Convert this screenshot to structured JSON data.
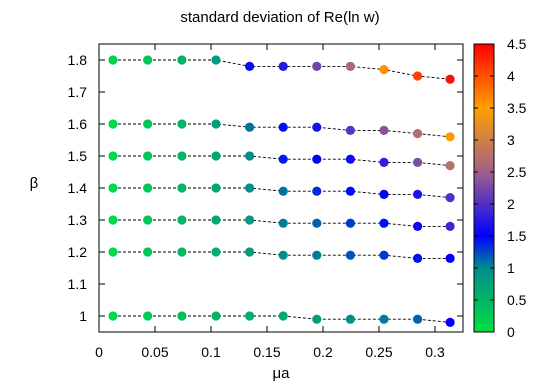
{
  "chart_data": {
    "type": "scatter",
    "title": "standard deviation of Re(ln w)",
    "xlabel": "μa",
    "ylabel": "β",
    "xlim": [
      0,
      0.325
    ],
    "ylim": [
      0.95,
      1.85
    ],
    "grid": false,
    "x_ticks": [
      0,
      0.05,
      0.1,
      0.15,
      0.2,
      0.25,
      0.3
    ],
    "x_tick_labels": [
      "0",
      "0.05",
      "0.1",
      "0.15",
      "0.2",
      "0.25",
      "0.3"
    ],
    "y_ticks": [
      1,
      1.1,
      1.2,
      1.3,
      1.4,
      1.5,
      1.6,
      1.7,
      1.8
    ],
    "y_tick_labels": [
      "1",
      "1.1",
      "1.2",
      "1.3",
      "1.4",
      "1.5",
      "1.6",
      "1.7",
      "1.8"
    ],
    "colorbar": {
      "range": [
        0,
        4.5
      ],
      "ticks": [
        0,
        0.5,
        1,
        1.5,
        2,
        2.5,
        3,
        3.5,
        4,
        4.5
      ],
      "tick_labels": [
        "0",
        "0.5",
        "1",
        "1.5",
        "2",
        "2.5",
        "3",
        "3.5",
        "4",
        "4.5"
      ],
      "stops": [
        {
          "v": 0.0,
          "color": "#00e040"
        },
        {
          "v": 1.0,
          "color": "#008c8c"
        },
        {
          "v": 1.5,
          "color": "#0000ff"
        },
        {
          "v": 2.5,
          "color": "#a0608c"
        },
        {
          "v": 3.5,
          "color": "#ffa000"
        },
        {
          "v": 4.5,
          "color": "#ff0000"
        }
      ]
    },
    "x": [
      0.0125,
      0.0435,
      0.074,
      0.1045,
      0.1345,
      0.1645,
      0.1945,
      0.2245,
      0.2545,
      0.2845,
      0.3135
    ],
    "series": [
      {
        "beta": [
          1.8,
          1.8,
          1.8,
          1.8,
          1.78,
          1.78,
          1.78,
          1.78,
          1.77,
          1.75,
          1.74
        ],
        "color_values": [
          0.15,
          0.35,
          0.55,
          0.8,
          1.45,
          1.75,
          2.2,
          2.6,
          3.6,
          4.1,
          4.4
        ]
      },
      {
        "beta": [
          1.6,
          1.6,
          1.6,
          1.6,
          1.59,
          1.59,
          1.59,
          1.58,
          1.58,
          1.57,
          1.56
        ],
        "color_values": [
          0.1,
          0.3,
          0.5,
          0.75,
          1.1,
          1.45,
          1.65,
          2.05,
          2.35,
          2.7,
          3.55
        ]
      },
      {
        "beta": [
          1.5,
          1.5,
          1.5,
          1.5,
          1.5,
          1.49,
          1.49,
          1.49,
          1.48,
          1.48,
          1.47
        ],
        "color_values": [
          0.1,
          0.3,
          0.5,
          0.7,
          1.0,
          1.4,
          1.5,
          1.6,
          1.8,
          2.3,
          2.75
        ]
      },
      {
        "beta": [
          1.4,
          1.4,
          1.4,
          1.4,
          1.4,
          1.39,
          1.39,
          1.39,
          1.38,
          1.38,
          1.37
        ],
        "color_values": [
          0.1,
          0.3,
          0.5,
          0.7,
          0.95,
          1.1,
          1.35,
          1.45,
          1.5,
          1.7,
          2.0
        ]
      },
      {
        "beta": [
          1.3,
          1.3,
          1.3,
          1.3,
          1.3,
          1.29,
          1.29,
          1.29,
          1.29,
          1.28,
          1.28
        ],
        "color_values": [
          0.1,
          0.3,
          0.5,
          0.65,
          0.85,
          1.05,
          1.15,
          1.3,
          1.45,
          1.55,
          1.9
        ]
      },
      {
        "beta": [
          1.2,
          1.2,
          1.2,
          1.2,
          1.2,
          1.19,
          1.19,
          1.19,
          1.19,
          1.18,
          1.18
        ],
        "color_values": [
          0.1,
          0.3,
          0.45,
          0.6,
          0.8,
          0.95,
          1.05,
          1.2,
          1.3,
          1.45,
          1.5
        ]
      },
      {
        "beta": [
          1.0,
          1.0,
          1.0,
          1.0,
          1.0,
          1.0,
          0.99,
          0.99,
          0.99,
          0.99,
          0.98
        ],
        "color_values": [
          0.1,
          0.25,
          0.4,
          0.5,
          0.6,
          0.65,
          0.8,
          0.95,
          1.05,
          1.15,
          1.5
        ]
      }
    ],
    "marker_style": "filled-circle",
    "line_style": "black-dashed"
  }
}
